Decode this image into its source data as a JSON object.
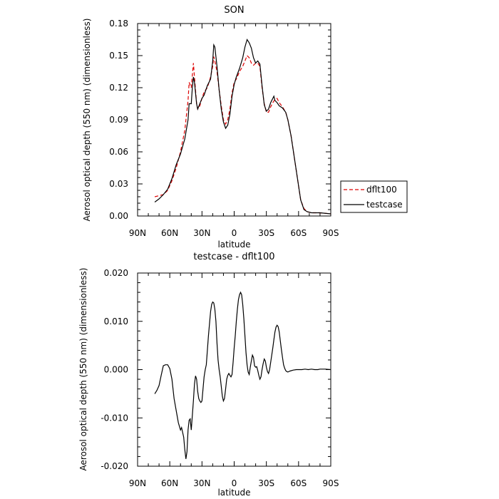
{
  "chart_data": [
    {
      "type": "line",
      "title": "SON",
      "xlabel": "latitude",
      "ylabel": "Aerosol optical depth (550 nm) (dimensionless)",
      "xlim": [
        90,
        -90
      ],
      "ylim": [
        0,
        0.18
      ],
      "xticks": [
        90,
        60,
        30,
        0,
        -30,
        -60,
        -90
      ],
      "xtick_labels": [
        "90N",
        "60N",
        "30N",
        "0",
        "30S",
        "60S",
        "90S"
      ],
      "yticks": [
        0,
        0.03,
        0.06,
        0.09,
        0.12,
        0.15,
        0.18
      ],
      "ytick_labels": [
        "0.00",
        "0.03",
        "0.06",
        "0.09",
        "0.12",
        "0.15",
        "0.18"
      ],
      "legend_position": "right",
      "series": [
        {
          "name": "dflt100",
          "color": "#dd0000",
          "dash": "dashed",
          "points": [
            [
              74,
              0.018
            ],
            [
              70,
              0.019
            ],
            [
              66,
              0.02
            ],
            [
              62,
              0.024
            ],
            [
              58,
              0.033
            ],
            [
              54,
              0.045
            ],
            [
              50,
              0.06
            ],
            [
              46,
              0.08
            ],
            [
              43,
              0.108
            ],
            [
              42,
              0.125
            ],
            [
              40,
              0.12
            ],
            [
              38,
              0.143
            ],
            [
              37,
              0.13
            ],
            [
              35,
              0.105
            ],
            [
              34,
              0.1
            ],
            [
              32,
              0.103
            ],
            [
              30,
              0.11
            ],
            [
              28,
              0.116
            ],
            [
              25,
              0.12
            ],
            [
              22,
              0.13
            ],
            [
              20,
              0.14
            ],
            [
              19,
              0.149
            ],
            [
              18,
              0.145
            ],
            [
              16,
              0.135
            ],
            [
              14,
              0.118
            ],
            [
              12,
              0.103
            ],
            [
              10,
              0.09
            ],
            [
              8,
              0.086
            ],
            [
              6,
              0.09
            ],
            [
              4,
              0.1
            ],
            [
              2,
              0.115
            ],
            [
              0,
              0.125
            ],
            [
              -2,
              0.128
            ],
            [
              -5,
              0.135
            ],
            [
              -8,
              0.14
            ],
            [
              -10,
              0.145
            ],
            [
              -12,
              0.15
            ],
            [
              -14,
              0.148
            ],
            [
              -16,
              0.143
            ],
            [
              -18,
              0.141
            ],
            [
              -20,
              0.143
            ],
            [
              -22,
              0.143
            ],
            [
              -24,
              0.14
            ],
            [
              -26,
              0.12
            ],
            [
              -28,
              0.105
            ],
            [
              -30,
              0.097
            ],
            [
              -32,
              0.097
            ],
            [
              -34,
              0.102
            ],
            [
              -36,
              0.106
            ],
            [
              -38,
              0.109
            ],
            [
              -40,
              0.11
            ],
            [
              -42,
              0.106
            ],
            [
              -45,
              0.102
            ],
            [
              -48,
              0.097
            ],
            [
              -50,
              0.09
            ],
            [
              -53,
              0.075
            ],
            [
              -56,
              0.055
            ],
            [
              -59,
              0.035
            ],
            [
              -62,
              0.015
            ],
            [
              -65,
              0.007
            ],
            [
              -68,
              0.004
            ],
            [
              -72,
              0.003
            ],
            [
              -80,
              0.003
            ],
            [
              -90,
              0.002
            ]
          ]
        },
        {
          "name": "testcase",
          "color": "#000000",
          "dash": "solid",
          "points": [
            [
              74,
              0.013
            ],
            [
              70,
              0.016
            ],
            [
              66,
              0.02
            ],
            [
              62,
              0.025
            ],
            [
              58,
              0.035
            ],
            [
              54,
              0.048
            ],
            [
              50,
              0.058
            ],
            [
              46,
              0.072
            ],
            [
              43,
              0.09
            ],
            [
              42,
              0.105
            ],
            [
              40,
              0.105
            ],
            [
              39,
              0.12
            ],
            [
              38,
              0.13
            ],
            [
              37,
              0.125
            ],
            [
              35,
              0.105
            ],
            [
              34,
              0.1
            ],
            [
              32,
              0.105
            ],
            [
              30,
              0.11
            ],
            [
              28,
              0.113
            ],
            [
              25,
              0.122
            ],
            [
              22,
              0.128
            ],
            [
              20,
              0.145
            ],
            [
              19,
              0.16
            ],
            [
              18,
              0.158
            ],
            [
              16,
              0.14
            ],
            [
              14,
              0.118
            ],
            [
              12,
              0.1
            ],
            [
              10,
              0.088
            ],
            [
              8,
              0.082
            ],
            [
              6,
              0.085
            ],
            [
              4,
              0.095
            ],
            [
              2,
              0.112
            ],
            [
              0,
              0.123
            ],
            [
              -2,
              0.13
            ],
            [
              -5,
              0.138
            ],
            [
              -8,
              0.148
            ],
            [
              -10,
              0.158
            ],
            [
              -12,
              0.165
            ],
            [
              -14,
              0.162
            ],
            [
              -16,
              0.157
            ],
            [
              -18,
              0.148
            ],
            [
              -20,
              0.143
            ],
            [
              -22,
              0.145
            ],
            [
              -24,
              0.142
            ],
            [
              -26,
              0.122
            ],
            [
              -28,
              0.104
            ],
            [
              -30,
              0.098
            ],
            [
              -32,
              0.1
            ],
            [
              -34,
              0.106
            ],
            [
              -36,
              0.11
            ],
            [
              -37,
              0.112
            ],
            [
              -38,
              0.108
            ],
            [
              -40,
              0.106
            ],
            [
              -42,
              0.103
            ],
            [
              -45,
              0.101
            ],
            [
              -48,
              0.097
            ],
            [
              -50,
              0.09
            ],
            [
              -53,
              0.075
            ],
            [
              -56,
              0.055
            ],
            [
              -59,
              0.035
            ],
            [
              -62,
              0.015
            ],
            [
              -65,
              0.006
            ],
            [
              -68,
              0.004
            ],
            [
              -72,
              0.003
            ],
            [
              -80,
              0.003
            ],
            [
              -90,
              0.002
            ]
          ]
        }
      ]
    },
    {
      "type": "line",
      "title": "testcase - dflt100",
      "xlabel": "latitude",
      "ylabel": "Aerosol optical depth (550 nm) (dimensionless)",
      "xlim": [
        90,
        -90
      ],
      "ylim": [
        -0.02,
        0.02
      ],
      "xticks": [
        90,
        60,
        30,
        0,
        -30,
        -60,
        -90
      ],
      "xtick_labels": [
        "90N",
        "60N",
        "30N",
        "0",
        "30S",
        "60S",
        "90S"
      ],
      "yticks": [
        -0.02,
        -0.01,
        0,
        0.01,
        0.02
      ],
      "ytick_labels": [
        "-0.020",
        "-0.010",
        "0.000",
        "0.010",
        "0.020"
      ],
      "series": [
        {
          "color": "#000000",
          "dash": "solid",
          "points": [
            [
              74,
              -0.005
            ],
            [
              72,
              -0.0043
            ],
            [
              70,
              -0.0033
            ],
            [
              68,
              -0.0012
            ],
            [
              66,
              0.0008
            ],
            [
              64,
              0.001
            ],
            [
              62,
              0.001
            ],
            [
              60,
              0.0002
            ],
            [
              58,
              -0.002
            ],
            [
              56,
              -0.006
            ],
            [
              54,
              -0.0085
            ],
            [
              52,
              -0.011
            ],
            [
              50,
              -0.0125
            ],
            [
              49,
              -0.012
            ],
            [
              47,
              -0.014
            ],
            [
              46,
              -0.0165
            ],
            [
              45,
              -0.0185
            ],
            [
              44,
              -0.017
            ],
            [
              43,
              -0.0125
            ],
            [
              42,
              -0.0105
            ],
            [
              41,
              -0.0102
            ],
            [
              40,
              -0.0125
            ],
            [
              39,
              -0.0095
            ],
            [
              38,
              -0.0065
            ],
            [
              37,
              -0.003
            ],
            [
              36,
              -0.0013
            ],
            [
              35,
              -0.002
            ],
            [
              34,
              -0.0045
            ],
            [
              33,
              -0.006
            ],
            [
              32,
              -0.0065
            ],
            [
              31,
              -0.0068
            ],
            [
              30,
              -0.0065
            ],
            [
              29,
              -0.004
            ],
            [
              28,
              -0.0015
            ],
            [
              27,
              0
            ],
            [
              26,
              0.001
            ],
            [
              25,
              0.004
            ],
            [
              24,
              0.007
            ],
            [
              23,
              0.0095
            ],
            [
              22,
              0.012
            ],
            [
              21,
              0.0135
            ],
            [
              20,
              0.014
            ],
            [
              19,
              0.0138
            ],
            [
              18,
              0.0125
            ],
            [
              17,
              0.01
            ],
            [
              16,
              0.0055
            ],
            [
              15,
              0.002
            ],
            [
              14,
              0
            ],
            [
              13,
              -0.0015
            ],
            [
              12,
              -0.0035
            ],
            [
              11,
              -0.0055
            ],
            [
              10,
              -0.0065
            ],
            [
              9,
              -0.006
            ],
            [
              8,
              -0.004
            ],
            [
              7,
              -0.002
            ],
            [
              6,
              -0.0012
            ],
            [
              5,
              -0.0008
            ],
            [
              4,
              -0.0012
            ],
            [
              3,
              -0.0015
            ],
            [
              2,
              -0.001
            ],
            [
              1,
              0.0015
            ],
            [
              0,
              0.0045
            ],
            [
              -1,
              0.007
            ],
            [
              -2,
              0.01
            ],
            [
              -3,
              0.0125
            ],
            [
              -4,
              0.0145
            ],
            [
              -5,
              0.0155
            ],
            [
              -6,
              0.016
            ],
            [
              -7,
              0.0155
            ],
            [
              -8,
              0.0135
            ],
            [
              -9,
              0.0105
            ],
            [
              -10,
              0.007
            ],
            [
              -11,
              0.0035
            ],
            [
              -12,
              0.001
            ],
            [
              -13,
              -0.0005
            ],
            [
              -14,
              -0.001
            ],
            [
              -15,
              0.0005
            ],
            [
              -16,
              0.0018
            ],
            [
              -17,
              0.003
            ],
            [
              -18,
              0.0025
            ],
            [
              -19,
              0.0008
            ],
            [
              -20,
              0.0005
            ],
            [
              -21,
              0.0006
            ],
            [
              -22,
              -0.0002
            ],
            [
              -23,
              -0.0012
            ],
            [
              -24,
              -0.002
            ],
            [
              -25,
              -0.0015
            ],
            [
              -26,
              0
            ],
            [
              -27,
              0.0012
            ],
            [
              -28,
              0.0022
            ],
            [
              -29,
              0.0018
            ],
            [
              -30,
              0.0005
            ],
            [
              -31,
              -0.0004
            ],
            [
              -32,
              -0.0008
            ],
            [
              -33,
              0
            ],
            [
              -34,
              0.0015
            ],
            [
              -35,
              0.003
            ],
            [
              -36,
              0.0045
            ],
            [
              -37,
              0.0062
            ],
            [
              -38,
              0.0078
            ],
            [
              -39,
              0.0088
            ],
            [
              -40,
              0.0092
            ],
            [
              -41,
              0.0089
            ],
            [
              -42,
              0.0078
            ],
            [
              -43,
              0.006
            ],
            [
              -44,
              0.0042
            ],
            [
              -45,
              0.0025
            ],
            [
              -46,
              0.001
            ],
            [
              -47,
              0.0003
            ],
            [
              -48,
              -0.0002
            ],
            [
              -49,
              -0.0004
            ],
            [
              -50,
              -0.0005
            ],
            [
              -52,
              -0.0003
            ],
            [
              -55,
              -0.0001
            ],
            [
              -58,
              0
            ],
            [
              -60,
              0
            ],
            [
              -63,
              0
            ],
            [
              -66,
              0.0001
            ],
            [
              -69,
              0
            ],
            [
              -72,
              0.0001
            ],
            [
              -75,
              0
            ],
            [
              -78,
              0
            ],
            [
              -80,
              0.0001
            ],
            [
              -85,
              0.0001
            ],
            [
              -90,
              0
            ]
          ]
        }
      ]
    }
  ]
}
